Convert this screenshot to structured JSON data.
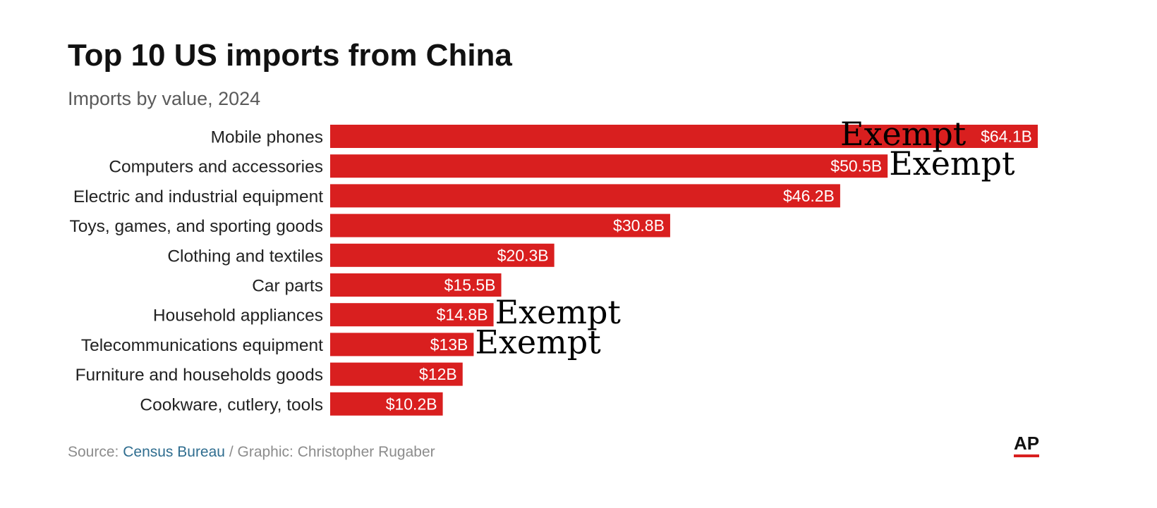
{
  "chart_data": {
    "type": "bar",
    "orientation": "horizontal",
    "title": "Top 10 US imports from China",
    "subtitle": "Imports by value, 2024",
    "categories": [
      "Mobile phones",
      "Computers and accessories",
      "Electric and industrial equipment",
      "Toys, games, and sporting goods",
      "Clothing and textiles",
      "Car parts",
      "Household appliances",
      "Telecommunications equipment",
      "Furniture and households goods",
      "Cookware, cutlery, tools"
    ],
    "values": [
      64.1,
      50.5,
      46.2,
      30.8,
      20.3,
      15.5,
      14.8,
      13,
      12,
      10.2
    ],
    "value_labels": [
      "$64.1B",
      "$50.5B",
      "$46.2B",
      "$30.8B",
      "$20.3B",
      "$15.5B",
      "$14.8B",
      "$13B",
      "$12B",
      "$10.2B"
    ],
    "unit": "billion USD",
    "xlim": [
      0,
      64.1
    ],
    "grid": false,
    "legend": "none",
    "annotations": [
      {
        "category": "Mobile phones",
        "text": "Exempt"
      },
      {
        "category": "Computers and accessories",
        "text": "Exempt"
      },
      {
        "category": "Household appliances",
        "text": "Exempt"
      },
      {
        "category": "Telecommunications equipment",
        "text": "Exempt"
      }
    ]
  },
  "source": {
    "prefix": "Source: ",
    "link": "Census Bureau",
    "suffix": " / Graphic: Christopher Rugaber"
  },
  "logo": "AP",
  "colors": {
    "bar": "#d91f1f",
    "title": "#111111",
    "subtitle": "#5a5a5a",
    "category_text": "#222222",
    "value_text": "#ffffff",
    "annotation": "#000000",
    "source_text": "#8c8c8c",
    "source_link": "#2f6d8f",
    "logo_text": "#111111",
    "logo_bar": "#d91f1f"
  }
}
